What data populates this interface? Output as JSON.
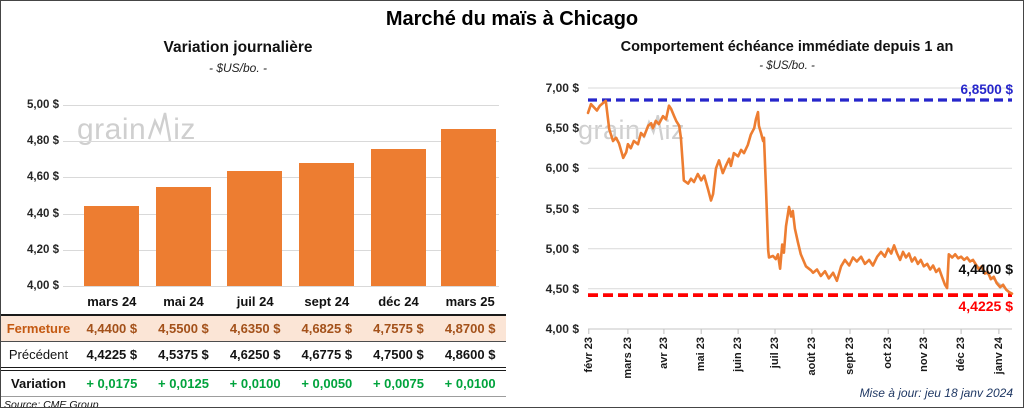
{
  "title": "Marché du maïs à Chicago",
  "watermark": {
    "pre": "grain",
    "post": "iz"
  },
  "updated_text": "Mise à jour: jeu 18 janv 2024",
  "colors": {
    "bar_and_line_orange": "#ED7D31",
    "fermeture_row_bg": "#FBE5D6",
    "fermeture_text": "#C45911",
    "variation_green": "#00A33C",
    "resistance_blue": "#2626CB",
    "support_red": "#FF0000",
    "gridline_gray": "#D9D9D9",
    "watermark_gray": "#CFCFCF"
  },
  "table": {
    "columns": [
      "mars 24",
      "mai 24",
      "juil 24",
      "sept 24",
      "déc 24",
      "mars 25"
    ],
    "rows": [
      {
        "label": "Fermeture",
        "values": [
          "4,4400  $",
          "4,5500  $",
          "4,6350  $",
          "4,6825  $",
          "4,7575  $",
          "4,8700  $"
        ]
      },
      {
        "label": "Précédent",
        "values": [
          "4,4225  $",
          "4,5375  $",
          "4,6250  $",
          "4,6775  $",
          "4,7500  $",
          "4,8600  $"
        ]
      },
      {
        "label": "Variation",
        "values": [
          "+ 0,0175",
          "+ 0,0125",
          "+ 0,0100",
          "+ 0,0050",
          "+ 0,0075",
          "+ 0,0100"
        ]
      }
    ],
    "source": "Source: CME Group"
  },
  "chart_data": [
    {
      "type": "bar",
      "title": "Variation  journalière",
      "subtitle": "- $US/bo. -",
      "unit": "$US/bo.",
      "categories": [
        "mars 24",
        "mai 24",
        "juil 24",
        "sept 24",
        "déc 24",
        "mars 25"
      ],
      "values": [
        4.44,
        4.55,
        4.635,
        4.6825,
        4.7575,
        4.87
      ],
      "ylim": [
        4.0,
        5.0
      ],
      "yticks": [
        4.0,
        4.2,
        4.4,
        4.6,
        4.8,
        5.0
      ],
      "grid": true
    },
    {
      "type": "line",
      "title": "Comportement  échéance  immédiate  depuis 1 an",
      "subtitle": "- $US/bo. -",
      "unit": "$US/bo.",
      "ylim": [
        4.0,
        7.0
      ],
      "yticks": [
        4.0,
        4.5,
        5.0,
        5.5,
        6.0,
        6.5,
        7.0
      ],
      "grid": true,
      "ref_lines": [
        {
          "name": "high",
          "value": 6.85,
          "label": "6,8500 $",
          "color": "#2626CB",
          "style": "dashed"
        },
        {
          "name": "low",
          "value": 4.4225,
          "label": "4,4225 $",
          "color": "#FF0000",
          "style": "dashed"
        }
      ],
      "last_point": {
        "value": 4.44,
        "label": "4,4400 $"
      },
      "xticks": [
        {
          "label": "févr 23",
          "f": 0.002
        },
        {
          "label": "mars 23",
          "f": 0.094
        },
        {
          "label": "avr 23",
          "f": 0.179
        },
        {
          "label": "mai 23",
          "f": 0.267
        },
        {
          "label": "juin 23",
          "f": 0.354
        },
        {
          "label": "juil 23",
          "f": 0.441
        },
        {
          "label": "août 23",
          "f": 0.528
        },
        {
          "label": "sept 23",
          "f": 0.618
        },
        {
          "label": "oct 23",
          "f": 0.708
        },
        {
          "label": "nov 23",
          "f": 0.792
        },
        {
          "label": "déc 23",
          "f": 0.88
        },
        {
          "label": "janv 24",
          "f": 0.969
        }
      ],
      "points": [
        [
          0.0,
          6.69
        ],
        [
          0.007,
          6.8
        ],
        [
          0.014,
          6.76
        ],
        [
          0.021,
          6.72
        ],
        [
          0.028,
          6.78
        ],
        [
          0.035,
          6.81
        ],
        [
          0.042,
          6.84
        ],
        [
          0.05,
          6.49
        ],
        [
          0.059,
          6.34
        ],
        [
          0.066,
          6.38
        ],
        [
          0.073,
          6.31
        ],
        [
          0.083,
          6.13
        ],
        [
          0.09,
          6.2
        ],
        [
          0.094,
          6.3
        ],
        [
          0.101,
          6.25
        ],
        [
          0.108,
          6.34
        ],
        [
          0.118,
          6.3
        ],
        [
          0.125,
          6.44
        ],
        [
          0.132,
          6.4
        ],
        [
          0.142,
          6.53
        ],
        [
          0.149,
          6.56
        ],
        [
          0.153,
          6.5
        ],
        [
          0.16,
          6.59
        ],
        [
          0.167,
          6.55
        ],
        [
          0.177,
          6.65
        ],
        [
          0.184,
          6.61
        ],
        [
          0.191,
          6.78
        ],
        [
          0.196,
          6.74
        ],
        [
          0.203,
          6.65
        ],
        [
          0.208,
          6.59
        ],
        [
          0.215,
          6.53
        ],
        [
          0.219,
          6.38
        ],
        [
          0.224,
          6.01
        ],
        [
          0.226,
          5.85
        ],
        [
          0.236,
          5.81
        ],
        [
          0.243,
          5.87
        ],
        [
          0.25,
          5.83
        ],
        [
          0.259,
          5.93
        ],
        [
          0.267,
          5.85
        ],
        [
          0.274,
          5.91
        ],
        [
          0.283,
          5.74
        ],
        [
          0.29,
          5.6
        ],
        [
          0.295,
          5.68
        ],
        [
          0.302,
          6.0
        ],
        [
          0.309,
          6.1
        ],
        [
          0.318,
          5.94
        ],
        [
          0.325,
          6.03
        ],
        [
          0.333,
          6.12
        ],
        [
          0.337,
          6.03
        ],
        [
          0.344,
          6.19
        ],
        [
          0.354,
          6.15
        ],
        [
          0.361,
          6.23
        ],
        [
          0.368,
          6.19
        ],
        [
          0.377,
          6.29
        ],
        [
          0.384,
          6.42
        ],
        [
          0.392,
          6.5
        ],
        [
          0.396,
          6.61
        ],
        [
          0.401,
          6.7
        ],
        [
          0.403,
          6.53
        ],
        [
          0.408,
          6.44
        ],
        [
          0.413,
          6.34
        ],
        [
          0.415,
          6.38
        ],
        [
          0.42,
          5.71
        ],
        [
          0.425,
          4.98
        ],
        [
          0.427,
          4.89
        ],
        [
          0.436,
          4.91
        ],
        [
          0.443,
          4.87
        ],
        [
          0.448,
          4.93
        ],
        [
          0.453,
          4.75
        ],
        [
          0.458,
          5.05
        ],
        [
          0.462,
          4.95
        ],
        [
          0.467,
          5.28
        ],
        [
          0.474,
          5.52
        ],
        [
          0.479,
          5.4
        ],
        [
          0.483,
          5.47
        ],
        [
          0.488,
          5.25
        ],
        [
          0.495,
          5.08
        ],
        [
          0.502,
          4.93
        ],
        [
          0.514,
          4.78
        ],
        [
          0.526,
          4.73
        ],
        [
          0.531,
          4.7
        ],
        [
          0.54,
          4.74
        ],
        [
          0.549,
          4.66
        ],
        [
          0.559,
          4.72
        ],
        [
          0.568,
          4.63
        ],
        [
          0.578,
          4.7
        ],
        [
          0.587,
          4.6
        ],
        [
          0.597,
          4.78
        ],
        [
          0.606,
          4.86
        ],
        [
          0.616,
          4.79
        ],
        [
          0.625,
          4.89
        ],
        [
          0.634,
          4.84
        ],
        [
          0.644,
          4.9
        ],
        [
          0.653,
          4.81
        ],
        [
          0.663,
          4.86
        ],
        [
          0.672,
          4.79
        ],
        [
          0.682,
          4.9
        ],
        [
          0.691,
          4.96
        ],
        [
          0.7,
          4.9
        ],
        [
          0.708,
          5.0
        ],
        [
          0.715,
          4.94
        ],
        [
          0.722,
          5.04
        ],
        [
          0.729,
          4.94
        ],
        [
          0.736,
          4.86
        ],
        [
          0.743,
          4.96
        ],
        [
          0.75,
          4.89
        ],
        [
          0.757,
          4.94
        ],
        [
          0.764,
          4.84
        ],
        [
          0.771,
          4.89
        ],
        [
          0.778,
          4.81
        ],
        [
          0.785,
          4.86
        ],
        [
          0.792,
          4.78
        ],
        [
          0.8,
          4.81
        ],
        [
          0.807,
          4.74
        ],
        [
          0.814,
          4.79
        ],
        [
          0.821,
          4.71
        ],
        [
          0.828,
          4.75
        ],
        [
          0.835,
          4.65
        ],
        [
          0.842,
          4.55
        ],
        [
          0.847,
          4.51
        ],
        [
          0.851,
          4.93
        ],
        [
          0.859,
          4.89
        ],
        [
          0.866,
          4.93
        ],
        [
          0.873,
          4.88
        ],
        [
          0.88,
          4.9
        ],
        [
          0.887,
          4.86
        ],
        [
          0.894,
          4.89
        ],
        [
          0.901,
          4.84
        ],
        [
          0.908,
          4.86
        ],
        [
          0.915,
          4.8
        ],
        [
          0.922,
          4.74
        ],
        [
          0.929,
          4.78
        ],
        [
          0.936,
          4.69
        ],
        [
          0.943,
          4.71
        ],
        [
          0.95,
          4.62
        ],
        [
          0.957,
          4.65
        ],
        [
          0.964,
          4.57
        ],
        [
          0.972,
          4.52
        ],
        [
          0.979,
          4.55
        ],
        [
          0.986,
          4.49
        ],
        [
          0.993,
          4.46
        ],
        [
          1.0,
          4.44
        ]
      ]
    }
  ]
}
